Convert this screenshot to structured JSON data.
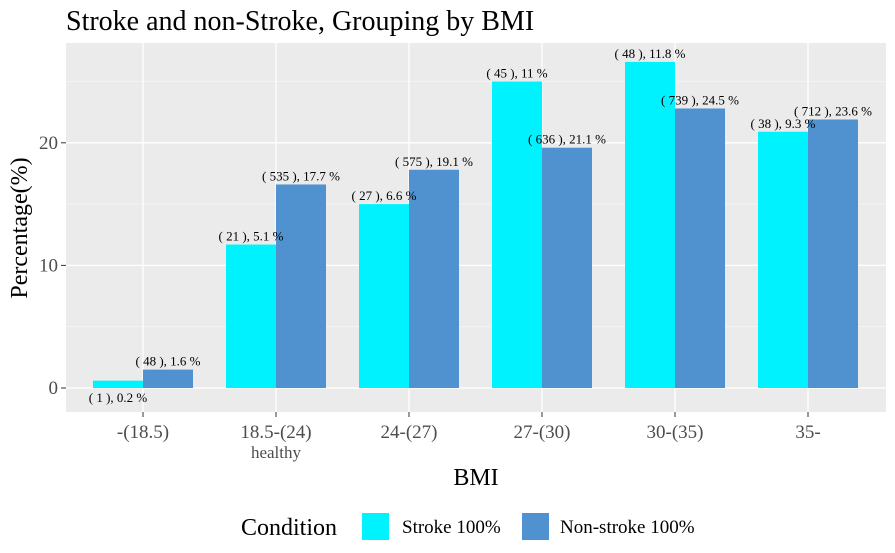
{
  "chart_data": {
    "type": "bar",
    "title": "Stroke and non-Stroke, Grouping by BMI",
    "xlabel": "BMI",
    "ylabel": "Percentage(%)",
    "categories": [
      "-(18.5)",
      "18.5-(24)",
      "24-(27)",
      "27-(30)",
      "30-(35)",
      "35-"
    ],
    "category_sublabels": [
      "",
      "healthy",
      "",
      "",
      "",
      ""
    ],
    "ylim": [
      0,
      28
    ],
    "yticks": [
      0,
      10,
      20
    ],
    "grid": true,
    "legend": {
      "title": "Condition",
      "position": "bottom"
    },
    "series": [
      {
        "name": "Stroke 100%",
        "color": "#00F2FF",
        "values": [
          0.6,
          11.7,
          15.0,
          25.0,
          26.6,
          20.9
        ],
        "labels": [
          "( 1 ), 0.2 %",
          "( 21 ), 5.1 %",
          "( 27 ), 6.6 %",
          "( 45 ), 11 %",
          "( 48 ), 11.8 %",
          "( 38 ), 9.3 %"
        ]
      },
      {
        "name": "Non-stroke 100%",
        "color": "#4F92CF",
        "values": [
          1.5,
          16.6,
          17.8,
          19.6,
          22.8,
          21.9
        ],
        "labels": [
          "( 48 ), 1.6 %",
          "( 535 ), 17.7 %",
          "( 575 ), 19.1 %",
          "( 636 ), 21.1 %",
          "( 739 ), 24.5 %",
          "( 712 ), 23.6 %"
        ]
      }
    ]
  }
}
